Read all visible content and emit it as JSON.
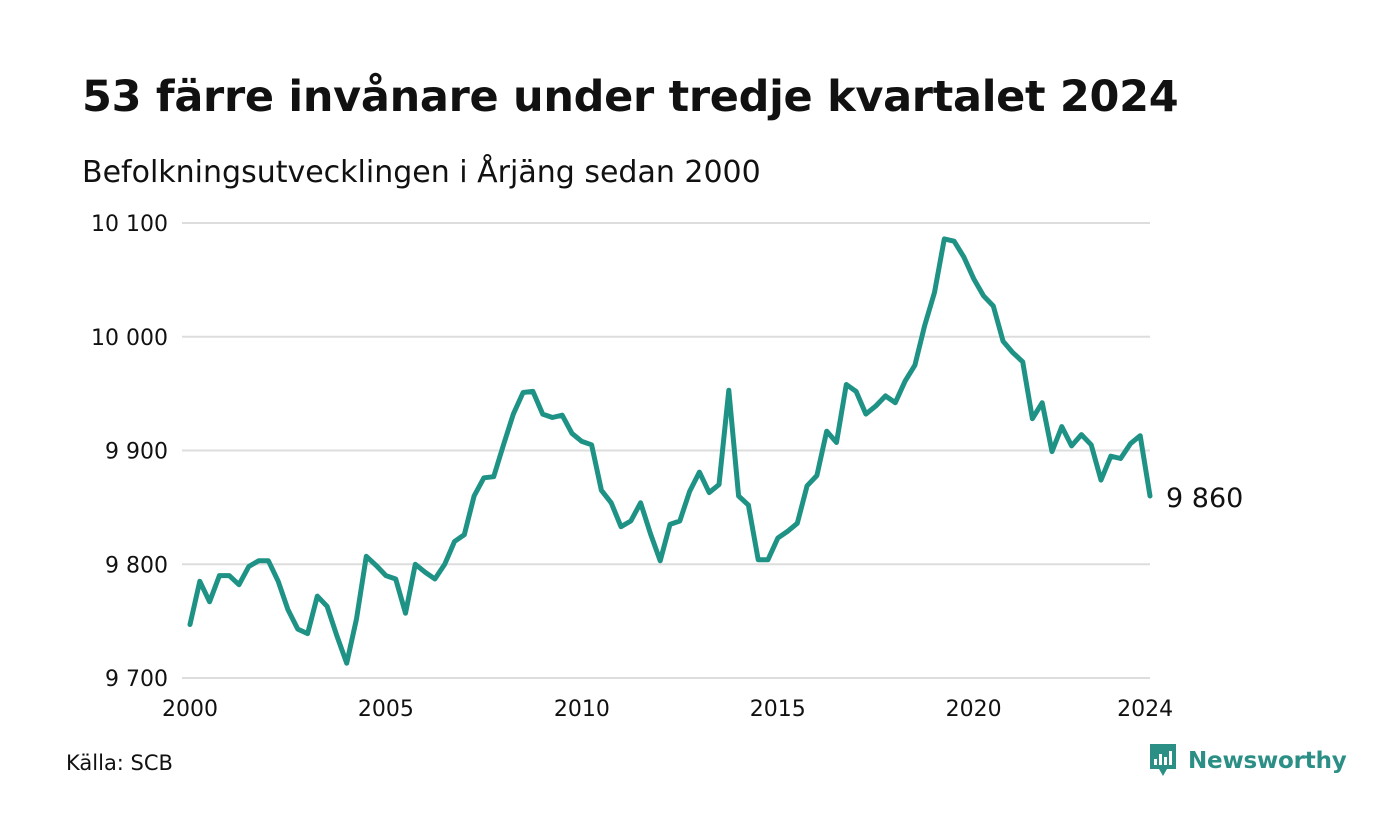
{
  "title": "53 färre invånare under tredje kvartalet 2024",
  "subtitle": "Befolkningsutvecklingen i Årjäng sedan 2000",
  "source": "Källa: SCB",
  "brand": {
    "name": "Newsworthy",
    "logo_icon": "newsworthy-chart-bubble-icon"
  },
  "colors": {
    "line": "#1f9286",
    "grid": "#dddddd",
    "text": "#111111",
    "brand": "#2b8f86"
  },
  "chart_data": {
    "type": "line",
    "title": "53 färre invånare under tredje kvartalet 2024",
    "subtitle": "Befolkningsutvecklingen i Årjäng sedan 2000",
    "xlabel": "",
    "ylabel": "",
    "x_start": "2000 Q1",
    "x_step": "quarter",
    "xlim": [
      2000,
      2024.5
    ],
    "ylim": [
      9700,
      10100
    ],
    "y_ticks": [
      {
        "value": 9700,
        "label": "9 700"
      },
      {
        "value": 9800,
        "label": "9 800"
      },
      {
        "value": 9900,
        "label": "9 900"
      },
      {
        "value": 10000,
        "label": "10 000"
      },
      {
        "value": 10100,
        "label": "10 100"
      }
    ],
    "x_ticks": [
      {
        "value": 2000,
        "label": "2000"
      },
      {
        "value": 2005,
        "label": "2005"
      },
      {
        "value": 2010,
        "label": "2010"
      },
      {
        "value": 2015,
        "label": "2015"
      },
      {
        "value": 2020,
        "label": "2020"
      },
      {
        "value": 2024.375,
        "label": "2024"
      }
    ],
    "grid": true,
    "legend": "none",
    "end_label": "9 860",
    "series": [
      {
        "values": [
          9747,
          9785,
          9767,
          9790,
          9790,
          9782,
          9798,
          9803,
          9803,
          9785,
          9760,
          9743,
          9739,
          9772,
          9763,
          9737,
          9713,
          9752,
          9807,
          9799,
          9790,
          9787,
          9757,
          9800,
          9793,
          9787,
          9800,
          9820,
          9826,
          9860,
          9876,
          9877,
          9905,
          9932,
          9951,
          9952,
          9932,
          9929,
          9931,
          9915,
          9908,
          9905,
          9865,
          9854,
          9833,
          9838,
          9854,
          9827,
          9803,
          9835,
          9838,
          9864,
          9881,
          9863,
          9870,
          9953,
          9860,
          9852,
          9804,
          9804,
          9823,
          9829,
          9836,
          9869,
          9878,
          9917,
          9907,
          9958,
          9952,
          9932,
          9939,
          9948,
          9942,
          9961,
          9975,
          10010,
          10039,
          10086,
          10084,
          10070,
          10051,
          10036,
          10027,
          9996,
          9986,
          9978,
          9928,
          9942,
          9899,
          9921,
          9904,
          9914,
          9905,
          9874,
          9895,
          9893,
          9906,
          9913,
          9860
        ]
      }
    ]
  }
}
